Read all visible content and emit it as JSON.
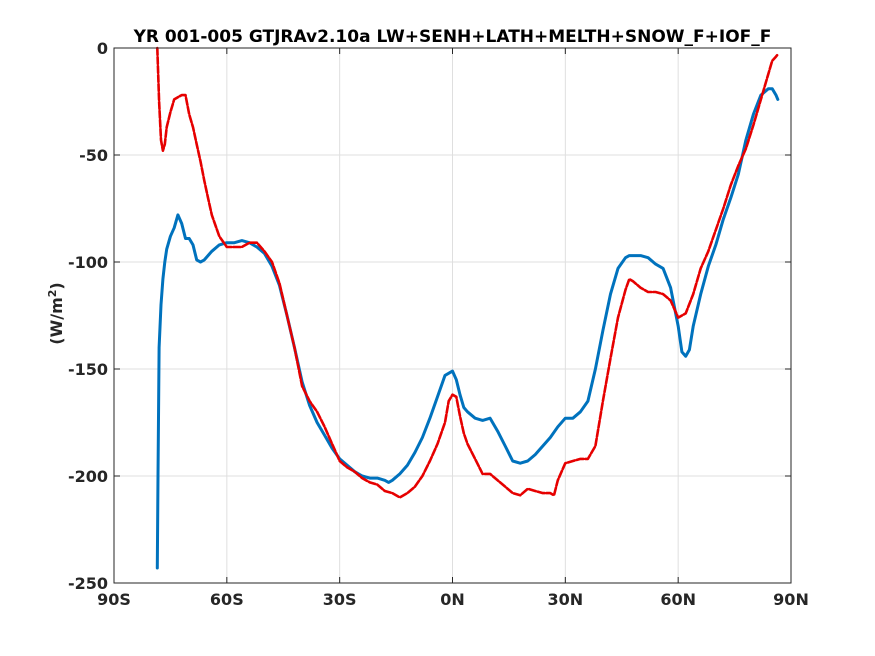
{
  "chart_data": {
    "type": "line",
    "title": "YR 001-005 GTJRAv2.10a LW+SENH+LATH+MELTH+SNOW_F+IOF_F",
    "xlabel": "",
    "ylabel": "(W/m²)",
    "ylabel_main": "(W/m",
    "ylabel_sup": "2",
    "ylabel_end": ")",
    "xlim": [
      -90,
      90
    ],
    "ylim": [
      -250,
      0
    ],
    "xticks": [
      -90,
      -60,
      -30,
      0,
      30,
      60,
      90
    ],
    "xtick_labels": [
      "90S",
      "60S",
      "30S",
      "0N",
      "30N",
      "60N",
      "90N"
    ],
    "yticks": [
      -250,
      -200,
      -150,
      -100,
      -50,
      0
    ],
    "ytick_labels": [
      "-250",
      "-200",
      "-150",
      "-100",
      "-50",
      "0"
    ],
    "grid": true,
    "series": [
      {
        "color": "#0072bd",
        "style": "solid",
        "x": [
          -78.5,
          -78.3,
          -78.0,
          -77.5,
          -77.0,
          -76.5,
          -76.0,
          -75.0,
          -74.0,
          -73.0,
          -72.0,
          -71.0,
          -70.0,
          -69.0,
          -68.0,
          -67.0,
          -66.0,
          -65.0,
          -64.0,
          -62.0,
          -60.0,
          -58.0,
          -56.0,
          -54.0,
          -52.0,
          -50.0,
          -48.0,
          -46.0,
          -44.0,
          -42.0,
          -40.0,
          -38.0,
          -36.0,
          -34.0,
          -32.0,
          -30.0,
          -28.0,
          -26.0,
          -24.0,
          -22.0,
          -20.0,
          -18.0,
          -17.0,
          -16.0,
          -14.0,
          -12.0,
          -10.0,
          -8.0,
          -6.0,
          -4.0,
          -2.0,
          0.0,
          1.0,
          2.0,
          3.0,
          4.0,
          6.0,
          8.0,
          10.0,
          12.0,
          14.0,
          16.0,
          18.0,
          20.0,
          22.0,
          24.0,
          26.0,
          28.0,
          30.0,
          32.0,
          34.0,
          36.0,
          38.0,
          40.0,
          42.0,
          44.0,
          46.0,
          47.0,
          48.0,
          50.0,
          52.0,
          54.0,
          56.0,
          58.0,
          60.0,
          61.0,
          62.0,
          63.0,
          64.0,
          66.0,
          68.0,
          70.0,
          72.0,
          74.0,
          76.0,
          78.0,
          80.0,
          82.0,
          84.0,
          85.0,
          86.0,
          86.5
        ],
        "y": [
          -243,
          -200,
          -140,
          -120,
          -108,
          -100,
          -94,
          -88,
          -84,
          -78,
          -82,
          -89,
          -89,
          -92,
          -99,
          -100,
          -99,
          -97,
          -95,
          -92,
          -91,
          -91,
          -90,
          -91,
          -93,
          -96,
          -102,
          -111,
          -125,
          -140,
          -156,
          -167,
          -175,
          -181,
          -187,
          -192,
          -195,
          -198,
          -200,
          -201,
          -201,
          -202,
          -203,
          -202,
          -199,
          -195,
          -189,
          -182,
          -173,
          -163,
          -153,
          -151,
          -155,
          -162,
          -168,
          -170,
          -173,
          -174,
          -173,
          -179,
          -186,
          -193,
          -194,
          -193,
          -190,
          -186,
          -182,
          -177,
          -173,
          -173,
          -170,
          -165,
          -150,
          -132,
          -115,
          -103,
          -98,
          -97,
          -97,
          -97,
          -98,
          -101,
          -103,
          -112,
          -130,
          -142,
          -144,
          -141,
          -130,
          -115,
          -102,
          -92,
          -80,
          -70,
          -59,
          -43,
          -31,
          -22,
          -19,
          -19,
          -22,
          -24
        ]
      },
      {
        "color": "#e60000",
        "style": "dashed",
        "x": [
          -78.5,
          -78.0,
          -77.5,
          -77.0,
          -76.5,
          -76.0,
          -75.0,
          -74.0,
          -73.0,
          -72.0,
          -71.0,
          -70.0,
          -69.0,
          -68.0,
          -67.0,
          -66.0,
          -65.0,
          -64.0,
          -62.0,
          -60.0,
          -58.0,
          -56.0,
          -54.0,
          -52.0,
          -50.0,
          -48.0,
          -46.0,
          -44.0,
          -42.0,
          -40.0,
          -38.0,
          -36.0,
          -34.0,
          -32.0,
          -30.0,
          -28.0,
          -26.0,
          -24.0,
          -22.0,
          -20.0,
          -18.0,
          -16.0,
          -14.0,
          -12.0,
          -10.0,
          -8.0,
          -6.0,
          -4.0,
          -2.0,
          -1.0,
          0.0,
          1.0,
          2.0,
          3.0,
          4.0,
          6.0,
          8.0,
          10.0,
          12.0,
          14.0,
          16.0,
          18.0,
          20.0,
          22.0,
          24.0,
          26.0,
          27.0,
          28.0,
          30.0,
          32.0,
          34.0,
          36.0,
          38.0,
          40.0,
          42.0,
          44.0,
          46.0,
          47.0,
          48.0,
          50.0,
          52.0,
          54.0,
          56.0,
          58.0,
          60.0,
          62.0,
          64.0,
          66.0,
          68.0,
          70.0,
          72.0,
          74.0,
          76.0,
          78.0,
          80.0,
          82.0,
          84.0,
          85.0,
          86.0,
          86.5
        ],
        "y": [
          0,
          -25,
          -43,
          -48,
          -45,
          -37,
          -30,
          -24,
          -23,
          -22,
          -22,
          -31,
          -37,
          -45,
          -53,
          -62,
          -70,
          -78,
          -88,
          -93,
          -93,
          -93,
          -91,
          -91,
          -95,
          -100,
          -110,
          -125,
          -140,
          -158,
          -165,
          -170,
          -177,
          -185,
          -193,
          -196,
          -198,
          -201,
          -203,
          -204,
          -207,
          -208,
          -210,
          -208,
          -205,
          -200,
          -193,
          -185,
          -175,
          -165,
          -162,
          -163,
          -172,
          -180,
          -185,
          -192,
          -199,
          -199,
          -202,
          -205,
          -208,
          -209,
          -206,
          -207,
          -208,
          -208,
          -209,
          -202,
          -194,
          -193,
          -192,
          -192,
          -186,
          -165,
          -145,
          -126,
          -113,
          -108,
          -109,
          -112,
          -114,
          -114,
          -115,
          -118,
          -126,
          -124,
          -115,
          -103,
          -95,
          -85,
          -75,
          -64,
          -55,
          -47,
          -36,
          -24,
          -12,
          -6,
          -4,
          -3
        ]
      }
    ]
  }
}
